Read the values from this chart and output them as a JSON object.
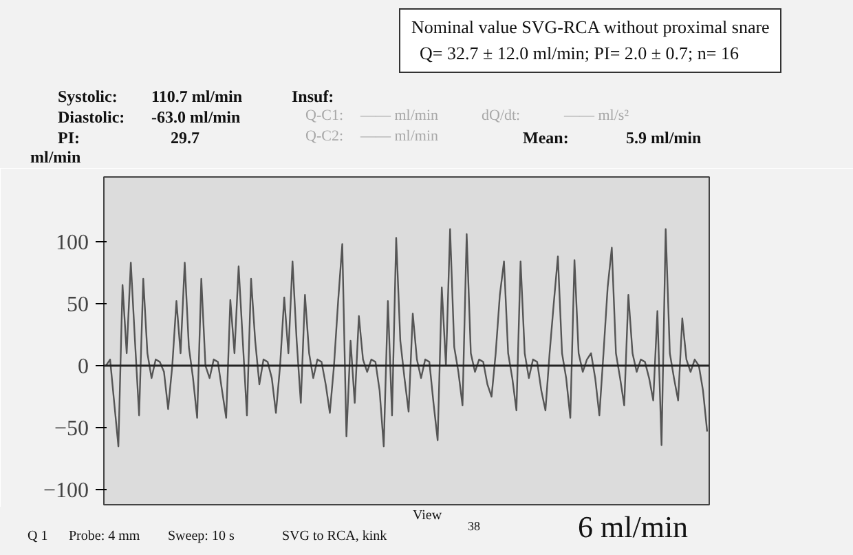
{
  "chart_data": {
    "type": "line",
    "title": "Nominal value SVG-RCA without proximal snare",
    "subtitle": "Q= 32.7 ± 12.0 ml/min; PI= 2.0 ± 0.7; n= 16",
    "ylabel": "ml/min",
    "categories": [
      null,
      null,
      null,
      null,
      null,
      null,
      null,
      null,
      null,
      null,
      null,
      null,
      null,
      null,
      null,
      null,
      null,
      null,
      null,
      null,
      null,
      null,
      null,
      null,
      null,
      null,
      null,
      null,
      null,
      null,
      null,
      null,
      null,
      null,
      null,
      null,
      null,
      null,
      null,
      null,
      null,
      null,
      null,
      null,
      null,
      null,
      null,
      null,
      null,
      null,
      null,
      null,
      null,
      null,
      null,
      null,
      null,
      null,
      null,
      null,
      null,
      null,
      null,
      null,
      null,
      null,
      null,
      null,
      null,
      null,
      null,
      null,
      null,
      null,
      null,
      null,
      null,
      null,
      null,
      null,
      null,
      null,
      null,
      null,
      null,
      null,
      null,
      null,
      null,
      null,
      null,
      null,
      null,
      null,
      null,
      null,
      null,
      null,
      null,
      null,
      null,
      null,
      null,
      null,
      null,
      null,
      null,
      null,
      null,
      null,
      null,
      null,
      null,
      null,
      null,
      null,
      null,
      null,
      null,
      null,
      null,
      null,
      null,
      null,
      null,
      null,
      null,
      null,
      null,
      null,
      null,
      null,
      null,
      null,
      null,
      null,
      null,
      null,
      null,
      null,
      null,
      null,
      null,
      null,
      null,
      null
    ],
    "series": [
      {
        "color": "#555555",
        "values": [
          0,
          5,
          -30,
          -65,
          65,
          10,
          83,
          20,
          -40,
          70,
          10,
          -10,
          5,
          3,
          -5,
          -35,
          0,
          52,
          10,
          83,
          15,
          -10,
          -42,
          70,
          0,
          -10,
          5,
          3,
          -20,
          -42,
          53,
          10,
          80,
          20,
          -40,
          70,
          20,
          -15,
          5,
          3,
          -10,
          -38,
          0,
          55,
          10,
          84,
          20,
          -30,
          57,
          10,
          -10,
          5,
          3,
          -15,
          -38,
          0,
          52,
          98,
          -57,
          20,
          -30,
          40,
          5,
          -5,
          5,
          3,
          -20,
          -65,
          52,
          -40,
          103,
          20,
          -10,
          -37,
          42,
          5,
          -10,
          5,
          3,
          -30,
          -60,
          63,
          0,
          110,
          15,
          -5,
          -32,
          106,
          10,
          -5,
          5,
          3,
          -15,
          -25,
          10,
          57,
          84,
          10,
          -10,
          -36,
          84,
          10,
          -10,
          5,
          3,
          -20,
          -36,
          10,
          50,
          88,
          10,
          -10,
          -42,
          85,
          10,
          -5,
          5,
          10,
          -10,
          -40,
          10,
          63,
          95,
          10,
          -10,
          -32,
          57,
          10,
          -5,
          5,
          3,
          -10,
          -28,
          44,
          -64,
          110,
          10,
          -10,
          -28,
          38,
          5,
          -5,
          5,
          0,
          -20,
          -53
        ]
      }
    ],
    "ylim": [
      -112,
      152
    ],
    "yticks": [
      -100,
      -50,
      0,
      50,
      100
    ],
    "grid": false,
    "tick_labels": "y",
    "ref_lines": [
      {
        "axis": "y",
        "value": 0,
        "color": "#222222"
      }
    ],
    "annotations": [
      "Systolic:",
      "110.7 ml/min",
      "Insuf:",
      "Diastolic:",
      "-63.0 ml/min",
      "Q-C1:",
      "—— ml/min",
      "dQ/dt:",
      "—— ml/s²",
      "PI:",
      "29.7",
      "Q-C2:",
      "—— ml/min",
      "Mean:",
      "5.9 ml/min",
      "Q 1",
      "Probe:  4 mm",
      "Sweep:  10 s",
      "SVG to RCA, kink",
      "View",
      "38",
      "6 ml/min"
    ]
  }
}
